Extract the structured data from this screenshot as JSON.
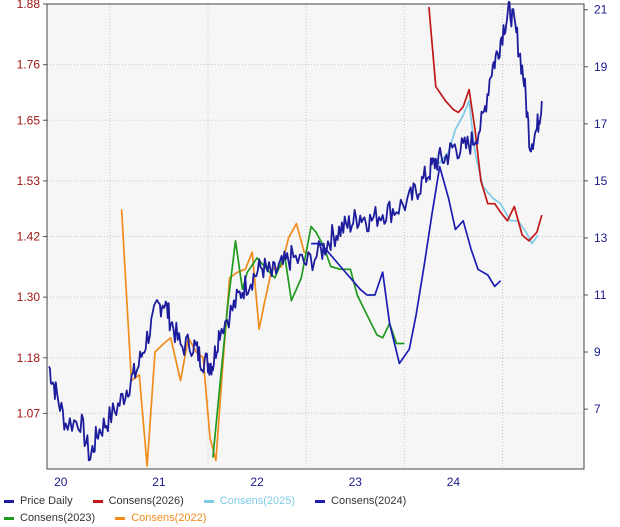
{
  "chart_data": {
    "type": "line",
    "title": "",
    "x_ticks": [
      "20",
      "21",
      "22",
      "23",
      "24"
    ],
    "left_axis": {
      "ticks": [
        "1.88",
        "1.76",
        "1.65",
        "1.53",
        "1.42",
        "1.30",
        "1.18",
        "1.07"
      ],
      "ylim": [
        0.96,
        1.88
      ],
      "color": "#a01515"
    },
    "right_axis": {
      "ticks": [
        "21",
        "19",
        "17",
        "15",
        "13",
        "11",
        "9",
        "7"
      ],
      "ylim": [
        4.9,
        21.2
      ],
      "color": "#1c1c8c"
    },
    "grid": true,
    "legend_position": "bottom",
    "series": [
      {
        "name": "Price Daily",
        "axis": "right",
        "color": "#1c1c9c",
        "noisy": true,
        "points": [
          [
            2019.88,
            8.5
          ],
          [
            2019.95,
            7.6
          ],
          [
            2020.05,
            6.5
          ],
          [
            2020.2,
            6.6
          ],
          [
            2020.3,
            5.3
          ],
          [
            2020.38,
            6.2
          ],
          [
            2020.48,
            6.6
          ],
          [
            2020.6,
            7.2
          ],
          [
            2020.7,
            7.9
          ],
          [
            2020.78,
            8.4
          ],
          [
            2020.88,
            9.5
          ],
          [
            2020.98,
            10.5
          ],
          [
            2021.05,
            10.8
          ],
          [
            2021.12,
            10.1
          ],
          [
            2021.22,
            9.2
          ],
          [
            2021.35,
            9.3
          ],
          [
            2021.42,
            8.8
          ],
          [
            2021.5,
            8.6
          ],
          [
            2021.55,
            8.6
          ],
          [
            2021.62,
            9.8
          ],
          [
            2021.75,
            10.5
          ],
          [
            2021.85,
            11.2
          ],
          [
            2021.95,
            11.6
          ],
          [
            2022.05,
            12.0
          ],
          [
            2022.15,
            11.7
          ],
          [
            2022.25,
            12.0
          ],
          [
            2022.35,
            12.3
          ],
          [
            2022.5,
            12.1
          ],
          [
            2022.65,
            12.5
          ],
          [
            2022.75,
            13.0
          ],
          [
            2022.85,
            13.3
          ],
          [
            2022.95,
            13.5
          ],
          [
            2023.05,
            13.8
          ],
          [
            2023.15,
            13.6
          ],
          [
            2023.28,
            13.9
          ],
          [
            2023.4,
            14.0
          ],
          [
            2023.55,
            14.3
          ],
          [
            2023.65,
            14.8
          ],
          [
            2023.75,
            15.3
          ],
          [
            2023.82,
            15.7
          ],
          [
            2023.92,
            15.8
          ],
          [
            2024.0,
            16.2
          ],
          [
            2024.1,
            16.1
          ],
          [
            2024.2,
            16.4
          ],
          [
            2024.3,
            17.1
          ],
          [
            2024.38,
            18.8
          ],
          [
            2024.45,
            19.5
          ],
          [
            2024.52,
            20.5
          ],
          [
            2024.58,
            21.0
          ],
          [
            2024.65,
            20.0
          ],
          [
            2024.72,
            18.5
          ],
          [
            2024.78,
            16.3
          ],
          [
            2024.85,
            16.8
          ],
          [
            2024.9,
            17.8
          ]
        ]
      },
      {
        "name": "Consens(2026)",
        "axis": "right",
        "color": "#c01818",
        "points": [
          [
            2023.75,
            21.1
          ],
          [
            2023.82,
            18.3
          ],
          [
            2023.92,
            17.8
          ],
          [
            2024.0,
            17.5
          ],
          [
            2024.05,
            17.4
          ],
          [
            2024.1,
            17.6
          ],
          [
            2024.16,
            18.2
          ],
          [
            2024.22,
            16.8
          ],
          [
            2024.28,
            15.0
          ],
          [
            2024.35,
            14.2
          ],
          [
            2024.42,
            14.2
          ],
          [
            2024.48,
            13.9
          ],
          [
            2024.55,
            13.6
          ],
          [
            2024.62,
            14.1
          ],
          [
            2024.7,
            13.1
          ],
          [
            2024.77,
            12.9
          ],
          [
            2024.85,
            13.2
          ],
          [
            2024.9,
            13.8
          ]
        ]
      },
      {
        "name": "Consens(2025)",
        "axis": "right",
        "color": "#7ecbe8",
        "points": [
          [
            2023.85,
            15.6
          ],
          [
            2023.95,
            16.0
          ],
          [
            2024.02,
            16.8
          ],
          [
            2024.1,
            17.3
          ],
          [
            2024.16,
            17.8
          ],
          [
            2024.22,
            16.0
          ],
          [
            2024.3,
            14.8
          ],
          [
            2024.4,
            14.4
          ],
          [
            2024.48,
            14.2
          ],
          [
            2024.58,
            13.6
          ],
          [
            2024.66,
            13.6
          ],
          [
            2024.74,
            13.2
          ],
          [
            2024.8,
            12.8
          ],
          [
            2024.86,
            13.1
          ]
        ]
      },
      {
        "name": "Consens(2024)",
        "axis": "right",
        "color": "#1c1cb4",
        "points": [
          [
            2022.55,
            12.8
          ],
          [
            2022.65,
            12.8
          ],
          [
            2022.75,
            12.4
          ],
          [
            2022.85,
            12.0
          ],
          [
            2022.95,
            11.6
          ],
          [
            2023.05,
            11.2
          ],
          [
            2023.12,
            11.0
          ],
          [
            2023.2,
            11.0
          ],
          [
            2023.28,
            11.8
          ],
          [
            2023.35,
            10.0
          ],
          [
            2023.45,
            8.6
          ],
          [
            2023.55,
            9.1
          ],
          [
            2023.62,
            10.3
          ],
          [
            2023.7,
            12.0
          ],
          [
            2023.78,
            13.8
          ],
          [
            2023.86,
            15.5
          ],
          [
            2023.95,
            14.4
          ],
          [
            2024.02,
            13.3
          ],
          [
            2024.1,
            13.6
          ],
          [
            2024.18,
            12.6
          ],
          [
            2024.25,
            11.9
          ],
          [
            2024.35,
            11.7
          ],
          [
            2024.42,
            11.3
          ],
          [
            2024.48,
            11.5
          ]
        ]
      },
      {
        "name": "Consens(2023)",
        "axis": "right",
        "color": "#1f9a1f",
        "points": [
          [
            2021.55,
            5.3
          ],
          [
            2021.62,
            7.8
          ],
          [
            2021.7,
            10.6
          ],
          [
            2021.78,
            12.9
          ],
          [
            2021.85,
            11.2
          ],
          [
            2021.9,
            11.8
          ],
          [
            2022.0,
            12.3
          ],
          [
            2022.1,
            11.9
          ],
          [
            2022.18,
            11.6
          ],
          [
            2022.28,
            12.4
          ],
          [
            2022.35,
            10.8
          ],
          [
            2022.45,
            11.6
          ],
          [
            2022.55,
            13.4
          ],
          [
            2022.6,
            13.2
          ],
          [
            2022.68,
            12.7
          ],
          [
            2022.75,
            12.0
          ],
          [
            2022.85,
            11.9
          ],
          [
            2022.95,
            11.9
          ],
          [
            2023.02,
            11.0
          ],
          [
            2023.12,
            10.3
          ],
          [
            2023.22,
            9.6
          ],
          [
            2023.28,
            9.5
          ],
          [
            2023.35,
            10.0
          ],
          [
            2023.42,
            9.3
          ],
          [
            2023.5,
            9.3
          ]
        ]
      },
      {
        "name": "Consens(2022)",
        "axis": "right",
        "color": "#f08c1c",
        "points": [
          [
            2020.62,
            14.0
          ],
          [
            2020.72,
            8.0
          ],
          [
            2020.8,
            8.2
          ],
          [
            2020.88,
            5.0
          ],
          [
            2020.96,
            9.0
          ],
          [
            2021.05,
            9.3
          ],
          [
            2021.12,
            9.5
          ],
          [
            2021.22,
            8.0
          ],
          [
            2021.3,
            9.5
          ],
          [
            2021.38,
            9.0
          ],
          [
            2021.45,
            8.8
          ],
          [
            2021.52,
            6.0
          ],
          [
            2021.58,
            5.2
          ],
          [
            2021.65,
            8.5
          ],
          [
            2021.72,
            11.6
          ],
          [
            2021.8,
            11.8
          ],
          [
            2021.88,
            11.9
          ],
          [
            2021.95,
            12.5
          ],
          [
            2022.02,
            9.8
          ],
          [
            2022.08,
            10.8
          ],
          [
            2022.15,
            11.9
          ],
          [
            2022.25,
            12.0
          ],
          [
            2022.32,
            13.0
          ],
          [
            2022.4,
            13.5
          ],
          [
            2022.48,
            12.5
          ],
          [
            2022.55,
            12.4
          ]
        ]
      }
    ]
  }
}
